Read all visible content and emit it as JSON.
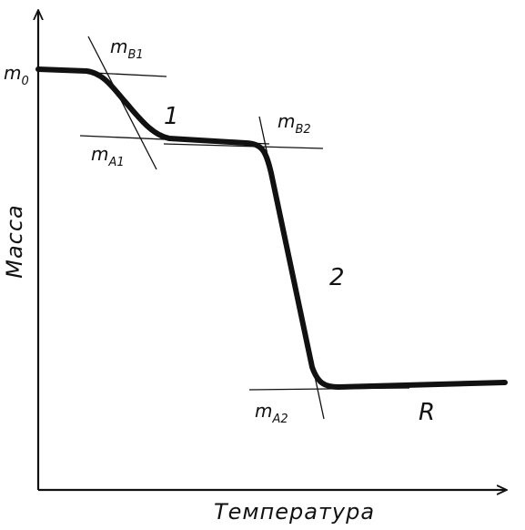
{
  "chart_data": {
    "type": "line",
    "xlabel": "Температура",
    "ylabel": "Масса",
    "grid": false,
    "colors": {
      "curve": "#111111",
      "axis": "#111111",
      "background": "#ffffff"
    },
    "axis_ticks": {
      "y_start": {
        "main": "m",
        "sub": "0"
      }
    },
    "step_labels": [
      "1",
      "2"
    ],
    "residue_label": "R",
    "tangent_labels": {
      "b1": {
        "main": "m",
        "sub": "B1"
      },
      "a1": {
        "main": "m",
        "sub": "A1"
      },
      "b2": {
        "main": "m",
        "sub": "B2"
      },
      "a2": {
        "main": "m",
        "sub": "A2"
      }
    }
  }
}
